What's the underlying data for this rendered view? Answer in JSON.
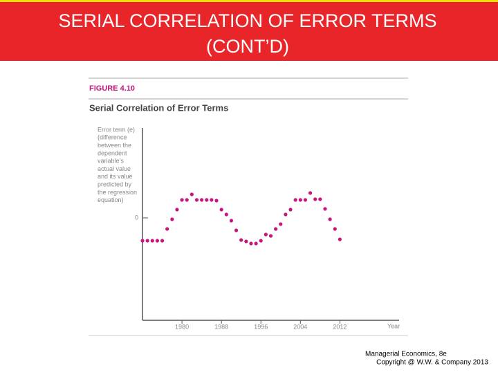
{
  "slide": {
    "title": [
      "SERIAL CORRELATION OF ERROR TERMS",
      "(CONT’D)"
    ],
    "footer": [
      "Managerial Economics, 8e",
      "Copyright @ W.W. & Company 2013"
    ]
  },
  "chart_data": {
    "type": "scatter",
    "figure_label": "FIGURE 4.10",
    "title": "Serial Correlation of Error Terms",
    "ylabel": [
      "Error term (e)",
      "(difference",
      "between the",
      "dependent",
      "variable’s",
      "actual value",
      "and its value",
      "predicted by",
      "the regression",
      "equation)"
    ],
    "xlabel": "Year",
    "x": [
      1972,
      1973,
      1974,
      1975,
      1976,
      1977,
      1978,
      1979,
      1980,
      1981,
      1982,
      1983,
      1984,
      1985,
      1986,
      1987,
      1988,
      1989,
      1990,
      1991,
      1992,
      1993,
      1994,
      1995,
      1996,
      1997,
      1998,
      1999,
      2000,
      2001,
      2002,
      2003,
      2004,
      2005,
      2006,
      2007,
      2008,
      2009,
      2010,
      2011,
      2012
    ],
    "values": [
      -3.3,
      -3.3,
      -3.3,
      -3.3,
      -3.3,
      -1.6,
      -0.2,
      1.2,
      2.6,
      2.6,
      3.4,
      2.6,
      2.6,
      2.6,
      2.6,
      2.5,
      1.2,
      0.5,
      -0.4,
      -1.8,
      -3.2,
      -3.4,
      -3.7,
      -3.7,
      -3.3,
      -2.4,
      -2.6,
      -1.6,
      -0.9,
      0.5,
      1.2,
      2.6,
      2.6,
      2.6,
      3.6,
      2.7,
      2.7,
      1.3,
      -0.2,
      -1.6,
      -3.1
    ],
    "color": "#c8157e",
    "xlim": [
      1972,
      2024
    ],
    "ylim": [
      -14.8,
      13
    ],
    "xticks": [
      1980,
      1988,
      1996,
      2004,
      2012
    ],
    "yticks": [
      0
    ]
  }
}
